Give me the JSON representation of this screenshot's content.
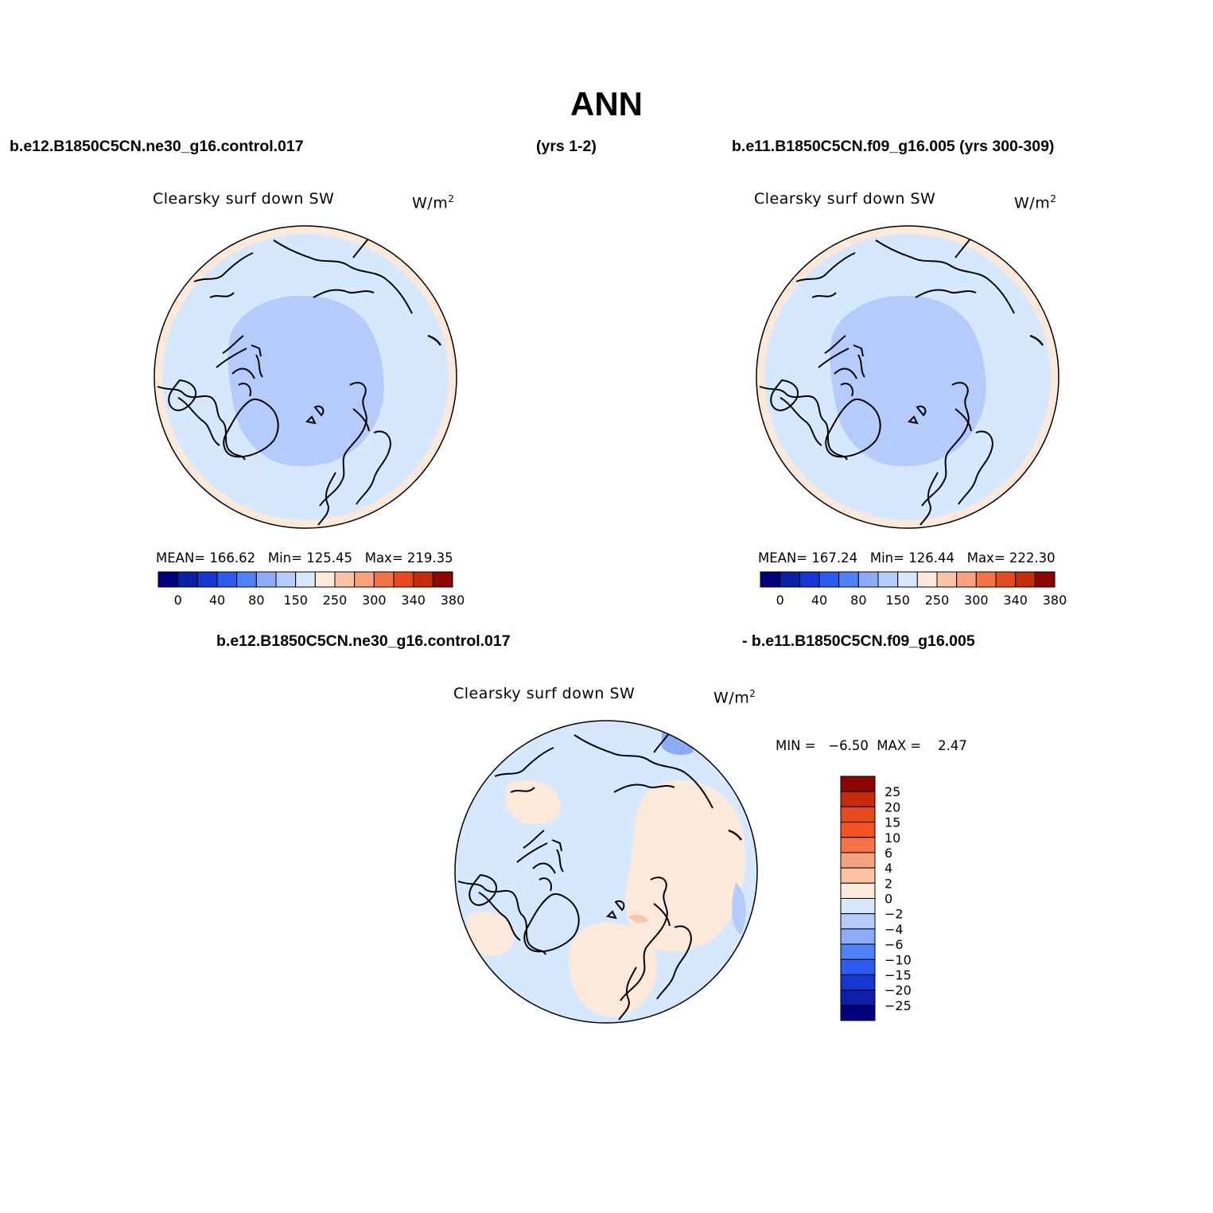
{
  "title": "ANN",
  "headers": {
    "case1": "b.e12.B1850C5CN.ne30_g16.control.017",
    "case1_years": "(yrs 1-2)",
    "case2": "b.e11.B1850C5CN.f09_g16.005 (yrs 300-309)",
    "diff_case1": "b.e12.B1850C5CN.ne30_g16.control.017",
    "diff_case2": "- b.e11.B1850C5CN.f09_g16.005"
  },
  "panels": [
    {
      "variable": "Clearsky surf down SW",
      "units": "W/m",
      "units_sup": "2",
      "mean_label": "MEAN=",
      "mean": "166.62",
      "min_label": "Min=",
      "min": "125.45",
      "max_label": "Max=",
      "max": "219.35"
    },
    {
      "variable": "Clearsky surf down SW",
      "units": "W/m",
      "units_sup": "2",
      "mean_label": "MEAN=",
      "mean": "167.24",
      "min_label": "Min=",
      "min": "126.44",
      "max_label": "Max=",
      "max": "222.30"
    }
  ],
  "diff_panel": {
    "variable": "Clearsky surf down SW",
    "units": "W/m",
    "units_sup": "2",
    "minmax_label": "MIN =   −6.50  MAX =    2.47",
    "min": -6.5,
    "max": 2.47
  },
  "colorbar_h": {
    "colors": [
      "#00007f",
      "#0b1fa8",
      "#1437d2",
      "#2b5bf0",
      "#4f82f6",
      "#8cacf8",
      "#b4cbfb",
      "#d6e8fd",
      "#fde9da",
      "#fbc4a7",
      "#f9a27e",
      "#f57346",
      "#e8481d",
      "#c52a0b",
      "#8c0503"
    ],
    "tick_labels": [
      "0",
      "40",
      "80",
      "150",
      "250",
      "300",
      "340",
      "380"
    ],
    "tick_boundaries": [
      1,
      3,
      5,
      7,
      9,
      11,
      13,
      15
    ]
  },
  "colorbar_v": {
    "colors_top_to_bottom": [
      "#8c0503",
      "#c52a0b",
      "#e8481d",
      "#f45222",
      "#f57346",
      "#f9a27e",
      "#fbc4a7",
      "#fde9da",
      "#d6e8fd",
      "#b4cbfb",
      "#8cacf8",
      "#4f82f6",
      "#2b5bf0",
      "#1437d2",
      "#0b1fa8",
      "#00007f"
    ],
    "levels_top_to_bottom": [
      "25",
      "20",
      "15",
      "10",
      "6",
      "4",
      "2",
      "0",
      "−2",
      "−4",
      "−6",
      "−10",
      "−15",
      "−20",
      "−25"
    ]
  },
  "map_colors": {
    "ring": "#fde9da",
    "field": "#d6e8fd",
    "arctic": "#b4cbfb",
    "diff_base": "#d6e8fd",
    "diff_pos": "#fde9da",
    "diff_pos2": "#fbc4a7",
    "diff_neg": "#b4cbfb",
    "diff_neg2": "#8cacf8",
    "coast": "#000000"
  }
}
